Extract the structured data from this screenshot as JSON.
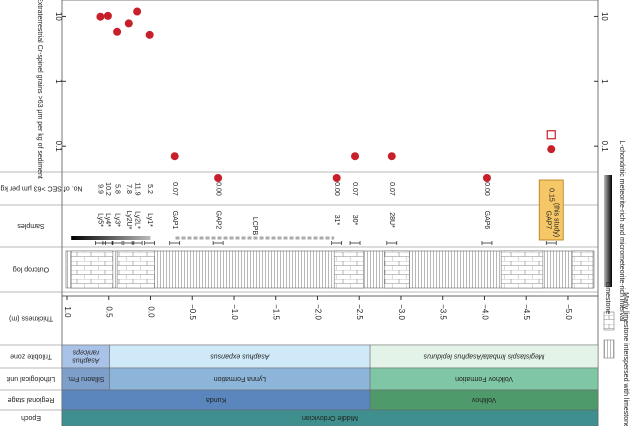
{
  "chart_data": {
    "type": "scatter",
    "y_label": "Extraterrestrial Cr-spinel grains >63 µm per kg of sediment",
    "log_y": true,
    "ylim": [
      0.04,
      15
    ],
    "yticks": [
      10,
      1,
      0.1
    ],
    "xlim": [
      1.06,
      -5.36
    ],
    "x_label": "Thickness (m)",
    "xticks": [
      {
        "value": 1.0,
        "label": "1.0"
      },
      {
        "value": 0.5,
        "label": "0.5"
      },
      {
        "value": 0.0,
        "label": "0.0"
      },
      {
        "value": -0.5,
        "label": "−0.5"
      },
      {
        "value": -1.0,
        "label": "−1.0"
      },
      {
        "value": -1.5,
        "label": "−1.5"
      },
      {
        "value": -2.0,
        "label": "−2.0"
      },
      {
        "value": -2.5,
        "label": "−2.5"
      },
      {
        "value": -3.0,
        "label": "−3.0"
      },
      {
        "value": -3.5,
        "label": "−3.5"
      },
      {
        "value": -4.0,
        "label": "−4.0"
      },
      {
        "value": -4.5,
        "label": "−4.5"
      },
      {
        "value": -5.0,
        "label": "−5.0"
      }
    ],
    "samples": [
      "Ly5*",
      "Ly4*",
      "Ly3*",
      "Ly2U*",
      "Ly2L*",
      "Ly1*",
      "GAP1",
      "GAP2",
      "31*",
      "30*",
      "28U*",
      "GAP6",
      "GAP7"
    ],
    "sample_note": "(this study)",
    "series": [
      {
        "marker": "circle",
        "color": "#c8202a",
        "x": [
          0.6,
          0.51,
          0.4,
          0.26,
          0.16,
          0.01,
          -0.29,
          -0.81,
          -2.23,
          -2.45,
          -2.89,
          -4.03,
          -4.8
        ],
        "values": [
          9.9,
          10.2,
          5.8,
          7.8,
          11.9,
          5.2,
          0.07,
          0,
          0,
          0.07,
          0.07,
          0,
          0.09
        ],
        "value_labels": [
          "9.9",
          "10.2",
          "5.8",
          "7.8",
          "11.9",
          "5.2",
          "0.07",
          "0.00",
          "0.00",
          "0.07",
          "0.07",
          "0.00",
          null
        ]
      },
      {
        "marker": "square",
        "color": "#c8202a",
        "x": [
          -4.8
        ],
        "values": [
          0.15
        ],
        "value_labels": [
          "0.15"
        ]
      }
    ],
    "lcpb": "LCPB",
    "rows": {
      "sec": "No. of SEC >63 µm per kg grains",
      "samples": "Samples",
      "log": "Outcrop log",
      "thickness": "Thickness (m)",
      "trilobite": "Trilobite zone",
      "litho": "Lithological unit",
      "stage": "Regional stage",
      "epoch": "Epoch"
    },
    "bands": {
      "trilobite": [
        {
          "label": "Asaphus raniceps",
          "from": 1.06,
          "to": 0.49,
          "color": "#a9c3e8"
        },
        {
          "label": "Asaphus expansus",
          "from": 0.49,
          "to": -2.63,
          "color": "#cfe9f9"
        },
        {
          "label": "Megistaspis limbata/Asaphus lepidurus",
          "from": -2.63,
          "to": -5.36,
          "color": "#e4f3e8"
        }
      ],
      "litho": [
        {
          "label": "Sillaoru Fm.",
          "from": 1.06,
          "to": 0.49,
          "color": "#7f9fcb"
        },
        {
          "label": "Lynna Formation",
          "from": 0.49,
          "to": -2.63,
          "color": "#8db5d9"
        },
        {
          "label": "Volkhov Formation",
          "from": -2.63,
          "to": -5.36,
          "color": "#7fc6a4"
        }
      ],
      "stage": [
        {
          "label": "Kunda",
          "from": 1.06,
          "to": -2.63,
          "color": "#5a86bd"
        },
        {
          "label": "Volkhov",
          "from": -2.63,
          "to": -5.36,
          "color": "#4f9a6b"
        }
      ],
      "epoch": [
        {
          "label": "Middle Ordovician",
          "from": 1.06,
          "to": -5.36,
          "color": "#3e8f8e"
        }
      ]
    },
    "interval_label": "L-chondritic meteorite-rich and micrometeorite-rich interval",
    "legend": [
      "Limestone",
      "Marly limestone interspersed with limestone"
    ]
  }
}
